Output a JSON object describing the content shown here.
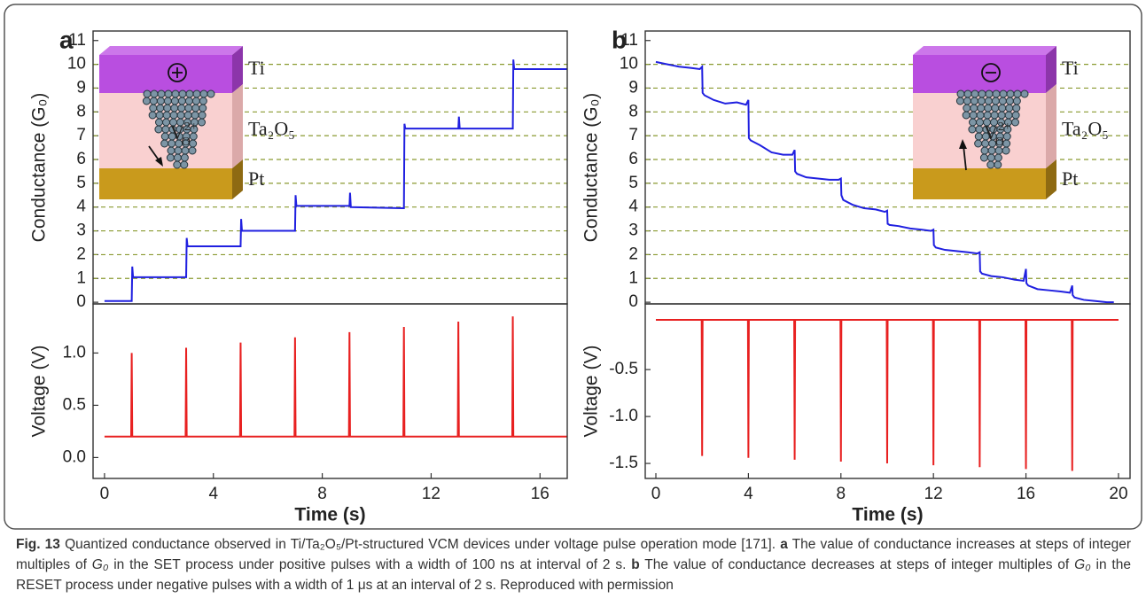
{
  "chart_data": [
    {
      "type": "line",
      "panel": "a",
      "ylabel": "Conductance (G₀)",
      "color": "#2020e0",
      "x": [
        0,
        0.95,
        1.0,
        1.02,
        1.05,
        2.95,
        3.0,
        3.02,
        3.05,
        4.95,
        5.0,
        5.02,
        5.05,
        6.95,
        7.0,
        7.02,
        7.05,
        8.95,
        9.0,
        9.02,
        9.05,
        10.95,
        11.0,
        11.02,
        11.05,
        12.95,
        13.0,
        13.02,
        13.05,
        14.95,
        15.0,
        15.02,
        15.05,
        17
      ],
      "values": [
        0.05,
        0.05,
        0.05,
        1.5,
        1.05,
        1.05,
        1.05,
        2.7,
        2.35,
        2.35,
        2.35,
        3.5,
        3.0,
        3.0,
        3.0,
        4.5,
        4.05,
        4.05,
        4.05,
        4.6,
        4.0,
        3.95,
        3.95,
        7.5,
        7.3,
        7.3,
        7.3,
        7.8,
        7.3,
        7.3,
        7.3,
        10.2,
        9.8,
        9.8
      ],
      "xlim": [
        -0.42,
        17
      ],
      "ylim": [
        -0.07,
        11.4
      ],
      "yticks": [
        0,
        1,
        2,
        3,
        4,
        5,
        6,
        7,
        8,
        9,
        10,
        11
      ],
      "grid": true,
      "grid_color": "#8a9a30",
      "inset": {
        "top": "Ti",
        "middle": "Ta₂O₅",
        "bottom": "Pt",
        "species": "V",
        "species_sub": "O",
        "species_sup": "2+"
      }
    },
    {
      "type": "line",
      "ylabel": "Voltage (V)",
      "xlabel": "Time (s)",
      "color": "#e82020",
      "x": [
        0,
        0.98,
        1,
        1.02,
        2.98,
        3,
        3.02,
        4.98,
        5,
        5.02,
        6.98,
        7,
        7.02,
        8.98,
        9,
        9.02,
        10.98,
        11,
        11.02,
        12.98,
        13,
        13.02,
        14.98,
        15,
        15.02,
        17
      ],
      "values": [
        0.2,
        0.2,
        1.0,
        0.2,
        0.2,
        1.05,
        0.2,
        0.2,
        1.1,
        0.2,
        0.2,
        1.15,
        0.2,
        0.2,
        1.2,
        0.2,
        0.2,
        1.25,
        0.2,
        0.2,
        1.3,
        0.2,
        0.2,
        1.35,
        0.2,
        0.2
      ],
      "xlim": [
        -0.42,
        17
      ],
      "ylim": [
        -0.2,
        1.47
      ],
      "xticks": [
        0,
        4,
        8,
        12,
        16
      ],
      "yticks": [
        {
          "value": 0,
          "label": "0.0"
        },
        0.5,
        {
          "value": 1,
          "label": "1.0"
        }
      ]
    },
    {
      "type": "line",
      "panel": "b",
      "ylabel": "Conductance (G₀)",
      "color": "#2020e0",
      "x": [
        0,
        0.5,
        1,
        1.5,
        1.9,
        2.0,
        2.02,
        2.1,
        2.5,
        3,
        3.5,
        3.9,
        4.0,
        4.02,
        4.1,
        4.5,
        5,
        5.5,
        5.9,
        6.0,
        6.02,
        6.1,
        6.5,
        7,
        7.5,
        7.9,
        8.0,
        8.02,
        8.1,
        8.5,
        9,
        9.5,
        9.9,
        10.0,
        10.02,
        10.1,
        10.5,
        11,
        11.5,
        11.9,
        12.0,
        12.02,
        12.1,
        12.5,
        13,
        13.5,
        13.9,
        14.0,
        14.02,
        14.1,
        14.5,
        15,
        15.5,
        15.9,
        16.0,
        16.02,
        16.1,
        16.5,
        17,
        17.5,
        17.9,
        18.0,
        18.02,
        18.1,
        18.5,
        19,
        19.5,
        19.8
      ],
      "values": [
        10.1,
        10.0,
        9.9,
        9.85,
        9.8,
        9.9,
        8.8,
        8.7,
        8.5,
        8.35,
        8.4,
        8.3,
        8.5,
        6.9,
        6.8,
        6.6,
        6.3,
        6.2,
        6.2,
        6.4,
        5.5,
        5.4,
        5.25,
        5.2,
        5.15,
        5.15,
        5.2,
        4.5,
        4.3,
        4.1,
        3.95,
        3.9,
        3.8,
        3.85,
        3.3,
        3.25,
        3.2,
        3.1,
        3.05,
        3.0,
        3.05,
        2.4,
        2.3,
        2.2,
        2.15,
        2.1,
        2.05,
        2.1,
        1.3,
        1.2,
        1.1,
        1.05,
        0.95,
        0.9,
        1.4,
        0.8,
        0.7,
        0.55,
        0.5,
        0.45,
        0.4,
        0.7,
        0.3,
        0.2,
        0.1,
        0.05,
        0.0,
        0.0
      ],
      "xlim": [
        -0.46,
        20.5
      ],
      "ylim": [
        -0.07,
        11.4
      ],
      "yticks": [
        0,
        1,
        2,
        3,
        4,
        5,
        6,
        7,
        8,
        9,
        10,
        11
      ],
      "grid": true,
      "grid_color": "#8a9a30",
      "inset": {
        "top": "Ti",
        "middle": "Ta₂O₅",
        "bottom": "Pt",
        "species": "V",
        "species_sub": "O",
        "species_sup": "2+"
      }
    },
    {
      "type": "line",
      "ylabel": "Voltage (V)",
      "xlabel": "Time (s)",
      "color": "#e82020",
      "x": [
        0,
        1.98,
        2,
        2.02,
        3.98,
        4,
        4.02,
        5.98,
        6,
        6.02,
        7.98,
        8,
        8.02,
        9.98,
        10,
        10.02,
        11.98,
        12,
        12.02,
        13.98,
        14,
        14.02,
        15.98,
        16,
        16.02,
        17.98,
        18,
        18.02,
        20
      ],
      "values": [
        0.03,
        0.03,
        -1.42,
        0.03,
        0.03,
        -1.44,
        0.03,
        0.03,
        -1.46,
        0.03,
        0.03,
        -1.48,
        0.03,
        0.03,
        -1.5,
        0.03,
        0.03,
        -1.52,
        0.03,
        0.03,
        -1.54,
        0.03,
        0.03,
        -1.56,
        0.03,
        0.03,
        -1.58,
        0.03,
        0.03
      ],
      "xlim": [
        -0.46,
        20.5
      ],
      "ylim": [
        -1.66,
        0.2
      ],
      "xticks": [
        0,
        4,
        8,
        12,
        16,
        20
      ],
      "yticks": [
        -0.5,
        {
          "value": -1,
          "label": "-1.0"
        },
        -1.5
      ]
    }
  ],
  "caption": {
    "runs": [
      {
        "text": "Fig. 13",
        "bold": true
      },
      {
        "text": " Quantized conductance observed in Ti/Ta₂O₅/Pt-structured VCM devices under voltage pulse operation mode [171]. "
      },
      {
        "text": "a",
        "bold": true
      },
      {
        "text": " The value of conductance increases at steps of integer multiples of "
      },
      {
        "text": "G₀",
        "italic": true
      },
      {
        "text": " in the SET process under positive pulses with a width of 100 ns at interval of 2 s. "
      },
      {
        "text": "b",
        "bold": true
      },
      {
        "text": " The value of conductance decreases at steps of integer multiples of "
      },
      {
        "text": "G₀",
        "italic": true
      },
      {
        "text": " in the RESET process under negative pulses with a width of 1 μs at an interval of 2 s. Reproduced with permission"
      }
    ]
  }
}
